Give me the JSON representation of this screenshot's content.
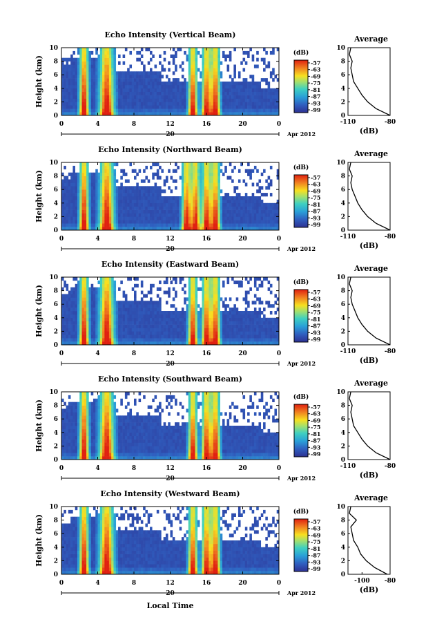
{
  "panels": [
    {
      "title": "Echo Intensity (Vertical Beam)"
    },
    {
      "title": "Echo Intensity (Northward Beam)"
    },
    {
      "title": "Echo Intensity (Eastward Beam)"
    },
    {
      "title": "Echo Intensity (Southward Beam)"
    },
    {
      "title": "Echo Intensity (Westward Beam)"
    }
  ],
  "shared": {
    "ylabel": "Height (km)",
    "xlabel": "Local Time",
    "y_ticks": [
      "0",
      "2",
      "4",
      "6",
      "8",
      "10"
    ],
    "x_ticks": [
      "0",
      "4",
      "8",
      "12",
      "16",
      "20",
      "0"
    ],
    "day_label": "20",
    "month_label": "Apr 2012",
    "colorbar_unit": "(dB)",
    "colorbar_ticks": [
      "-57",
      "-63",
      "-69",
      "-75",
      "-81",
      "-87",
      "-93",
      "-99"
    ],
    "avg_title": "Average",
    "avg_xlabel": "(dB)",
    "avg_x_ticks": [
      "-110",
      "-80"
    ],
    "avg_x_ticks_west": [
      "-100",
      "-80"
    ],
    "colors": {
      "low": "#2e3192",
      "mid": "#2aa0d8",
      "high": "#e02010",
      "peak": "#f7e020",
      "outline": "#000000"
    }
  },
  "chart_data": [
    {
      "type": "heatmap",
      "title": "Echo Intensity (Vertical Beam)",
      "xlabel": "",
      "ylabel": "Height (km)",
      "x_range_hours": [
        0,
        24
      ],
      "ylim": [
        0,
        10
      ],
      "colorbar_range_db": [
        -99,
        -57
      ],
      "convective_cells_hours": [
        2.5,
        5.0,
        14.5,
        16.0,
        17.0
      ],
      "average_profile": {
        "xlim": [
          -110,
          -80
        ],
        "height_km": [
          0,
          1,
          2,
          3,
          4,
          5,
          6,
          7,
          8,
          9,
          10
        ],
        "db": [
          -80,
          -90,
          -96,
          -100,
          -103,
          -106,
          -107,
          -108,
          -107,
          -109,
          -108
        ]
      }
    },
    {
      "type": "heatmap",
      "title": "Echo Intensity (Northward Beam)",
      "xlabel": "",
      "ylabel": "Height (km)",
      "x_range_hours": [
        0,
        24
      ],
      "ylim": [
        0,
        10
      ],
      "colorbar_range_db": [
        -99,
        -57
      ],
      "convective_cells_hours": [
        2.5,
        5.0,
        13.8,
        14.8,
        16.0,
        17.0
      ],
      "average_profile": {
        "xlim": [
          -110,
          -80
        ],
        "height_km": [
          0,
          1,
          2,
          3,
          4,
          5,
          6,
          7,
          8,
          9,
          10
        ],
        "db": [
          -80,
          -90,
          -96,
          -100,
          -103,
          -105,
          -107,
          -108,
          -107,
          -109,
          -108
        ]
      }
    },
    {
      "type": "heatmap",
      "title": "Echo Intensity (Eastward Beam)",
      "xlabel": "",
      "ylabel": "Height (km)",
      "x_range_hours": [
        0,
        24
      ],
      "ylim": [
        0,
        10
      ],
      "colorbar_range_db": [
        -99,
        -57
      ],
      "convective_cells_hours": [
        2.5,
        5.0,
        14.5,
        16.0,
        17.0
      ],
      "average_profile": {
        "xlim": [
          -110,
          -80
        ],
        "height_km": [
          0,
          1,
          2,
          3,
          4,
          5,
          6,
          7,
          8,
          9,
          10
        ],
        "db": [
          -80,
          -90,
          -96,
          -100,
          -103,
          -105,
          -107,
          -108,
          -107,
          -109,
          -108
        ]
      }
    },
    {
      "type": "heatmap",
      "title": "Echo Intensity (Southward Beam)",
      "xlabel": "",
      "ylabel": "Height (km)",
      "x_range_hours": [
        0,
        24
      ],
      "ylim": [
        0,
        10
      ],
      "colorbar_range_db": [
        -99,
        -57
      ],
      "convective_cells_hours": [
        2.5,
        5.0,
        14.5,
        16.0,
        17.0
      ],
      "average_profile": {
        "xlim": [
          -110,
          -80
        ],
        "height_km": [
          0,
          1,
          2,
          3,
          4,
          5,
          6,
          7,
          8,
          9,
          10
        ],
        "db": [
          -80,
          -90,
          -96,
          -100,
          -103,
          -106,
          -107,
          -108,
          -107,
          -109,
          -108
        ]
      }
    },
    {
      "type": "heatmap",
      "title": "Echo Intensity (Westward Beam)",
      "xlabel": "Local Time",
      "ylabel": "Height (km)",
      "x_range_hours": [
        0,
        24
      ],
      "ylim": [
        0,
        10
      ],
      "colorbar_range_db": [
        -99,
        -57
      ],
      "convective_cells_hours": [
        2.5,
        5.0,
        14.5,
        16.0,
        17.0
      ],
      "average_profile": {
        "xlim": [
          -110,
          -80
        ],
        "height_km": [
          0,
          1,
          2,
          3,
          4,
          5,
          6,
          7,
          8,
          9,
          10
        ],
        "db": [
          -82,
          -91,
          -97,
          -101,
          -103,
          -106,
          -107,
          -108,
          -104,
          -109,
          -108
        ]
      }
    }
  ]
}
